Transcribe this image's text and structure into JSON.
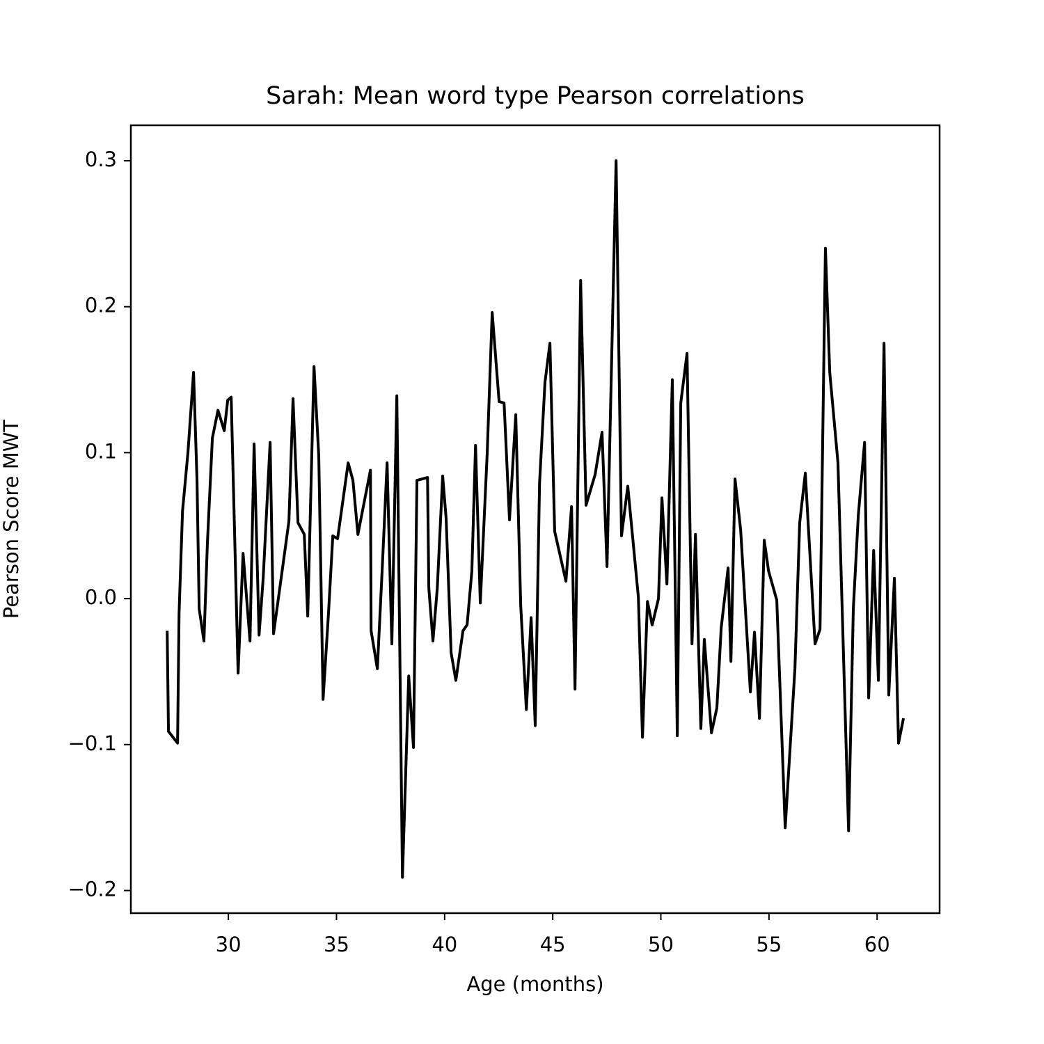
{
  "chart_data": {
    "type": "line",
    "title": "Sarah: Mean word type Pearson correlations",
    "x_label": "Age (months)",
    "y_label": "Pearson Score MWT",
    "color": "#000000",
    "xlim": [
      25.49,
      62.89
    ],
    "ylim": [
      -0.2155,
      0.3243
    ],
    "xticks": [
      30,
      35,
      40,
      45,
      50,
      55,
      60
    ],
    "yticks": [
      {
        "value": -0.2,
        "label": "−0.2"
      },
      {
        "value": -0.1,
        "label": "−0.1"
      },
      {
        "value": 0,
        "label": "0.0"
      },
      0.1,
      0.2,
      0.3
    ],
    "x": [
      27.17,
      27.23,
      27.65,
      27.72,
      27.88,
      28.13,
      28.39,
      28.55,
      28.65,
      28.87,
      29.03,
      29.26,
      29.52,
      29.81,
      29.97,
      30.13,
      30.45,
      30.68,
      31.0,
      31.19,
      31.42,
      31.61,
      31.93,
      32.09,
      32.8,
      32.99,
      33.22,
      33.51,
      33.67,
      33.96,
      34.18,
      34.38,
      34.63,
      34.83,
      35.05,
      35.54,
      35.76,
      35.99,
      36.57,
      36.6,
      36.89,
      37.11,
      37.34,
      37.56,
      37.79,
      38.05,
      38.34,
      38.56,
      38.72,
      39.21,
      39.27,
      39.46,
      39.66,
      39.91,
      40.07,
      40.3,
      40.52,
      40.85,
      41.04,
      41.26,
      41.43,
      41.65,
      41.97,
      42.2,
      42.52,
      42.75,
      43.0,
      43.29,
      43.52,
      43.78,
      44.0,
      44.19,
      44.39,
      44.64,
      44.87,
      45.09,
      45.35,
      45.61,
      45.87,
      46.03,
      46.29,
      46.54,
      46.96,
      47.28,
      47.51,
      47.93,
      48.18,
      48.47,
      48.96,
      49.15,
      49.38,
      49.6,
      49.89,
      50.05,
      50.28,
      50.53,
      50.76,
      50.92,
      51.21,
      51.44,
      51.6,
      51.85,
      52.01,
      52.34,
      52.59,
      52.79,
      53.11,
      53.24,
      53.43,
      53.69,
      54.14,
      54.33,
      54.56,
      54.78,
      54.98,
      55.36,
      55.75,
      56.2,
      56.42,
      56.68,
      56.91,
      57.13,
      57.36,
      57.61,
      57.81,
      58.19,
      58.68,
      58.9,
      59.13,
      59.42,
      59.61,
      59.84,
      60.06,
      60.32,
      60.54,
      60.8,
      60.99,
      61.22
    ],
    "values": [
      -0.022,
      -0.091,
      -0.099,
      -0.01,
      0.06,
      0.1,
      0.155,
      0.081,
      -0.007,
      -0.029,
      0.038,
      0.11,
      0.129,
      0.115,
      0.136,
      0.138,
      -0.051,
      0.031,
      -0.029,
      0.106,
      -0.025,
      0.014,
      0.107,
      -0.024,
      0.053,
      0.137,
      0.052,
      0.044,
      -0.012,
      0.159,
      0.098,
      -0.069,
      -0.01,
      0.043,
      0.041,
      0.093,
      0.081,
      0.044,
      0.088,
      -0.022,
      -0.048,
      0.019,
      0.093,
      -0.031,
      0.139,
      -0.191,
      -0.053,
      -0.102,
      0.081,
      0.083,
      0.007,
      -0.029,
      0.007,
      0.084,
      0.055,
      -0.037,
      -0.056,
      -0.022,
      -0.018,
      0.019,
      0.105,
      -0.003,
      0.1,
      0.196,
      0.135,
      0.134,
      0.054,
      0.126,
      -0.005,
      -0.076,
      -0.013,
      -0.087,
      0.079,
      0.148,
      0.175,
      0.046,
      0.029,
      0.012,
      0.063,
      -0.062,
      0.218,
      0.064,
      0.085,
      0.114,
      0.022,
      0.3,
      0.043,
      0.077,
      0.001,
      -0.095,
      -0.002,
      -0.018,
      0,
      0.069,
      0.01,
      0.15,
      -0.094,
      0.134,
      0.168,
      -0.031,
      0.044,
      -0.089,
      -0.028,
      -0.092,
      -0.075,
      -0.02,
      0.021,
      -0.043,
      0.082,
      0.047,
      -0.064,
      -0.023,
      -0.082,
      0.04,
      0.019,
      -0.001,
      -0.157,
      -0.048,
      0.052,
      0.086,
      0.026,
      -0.031,
      -0.021,
      0.24,
      0.155,
      0.093,
      -0.159,
      -0.007,
      0.057,
      0.107,
      -0.068,
      0.033,
      -0.056,
      0.175,
      -0.066,
      0.014,
      -0.099,
      -0.082
    ]
  }
}
